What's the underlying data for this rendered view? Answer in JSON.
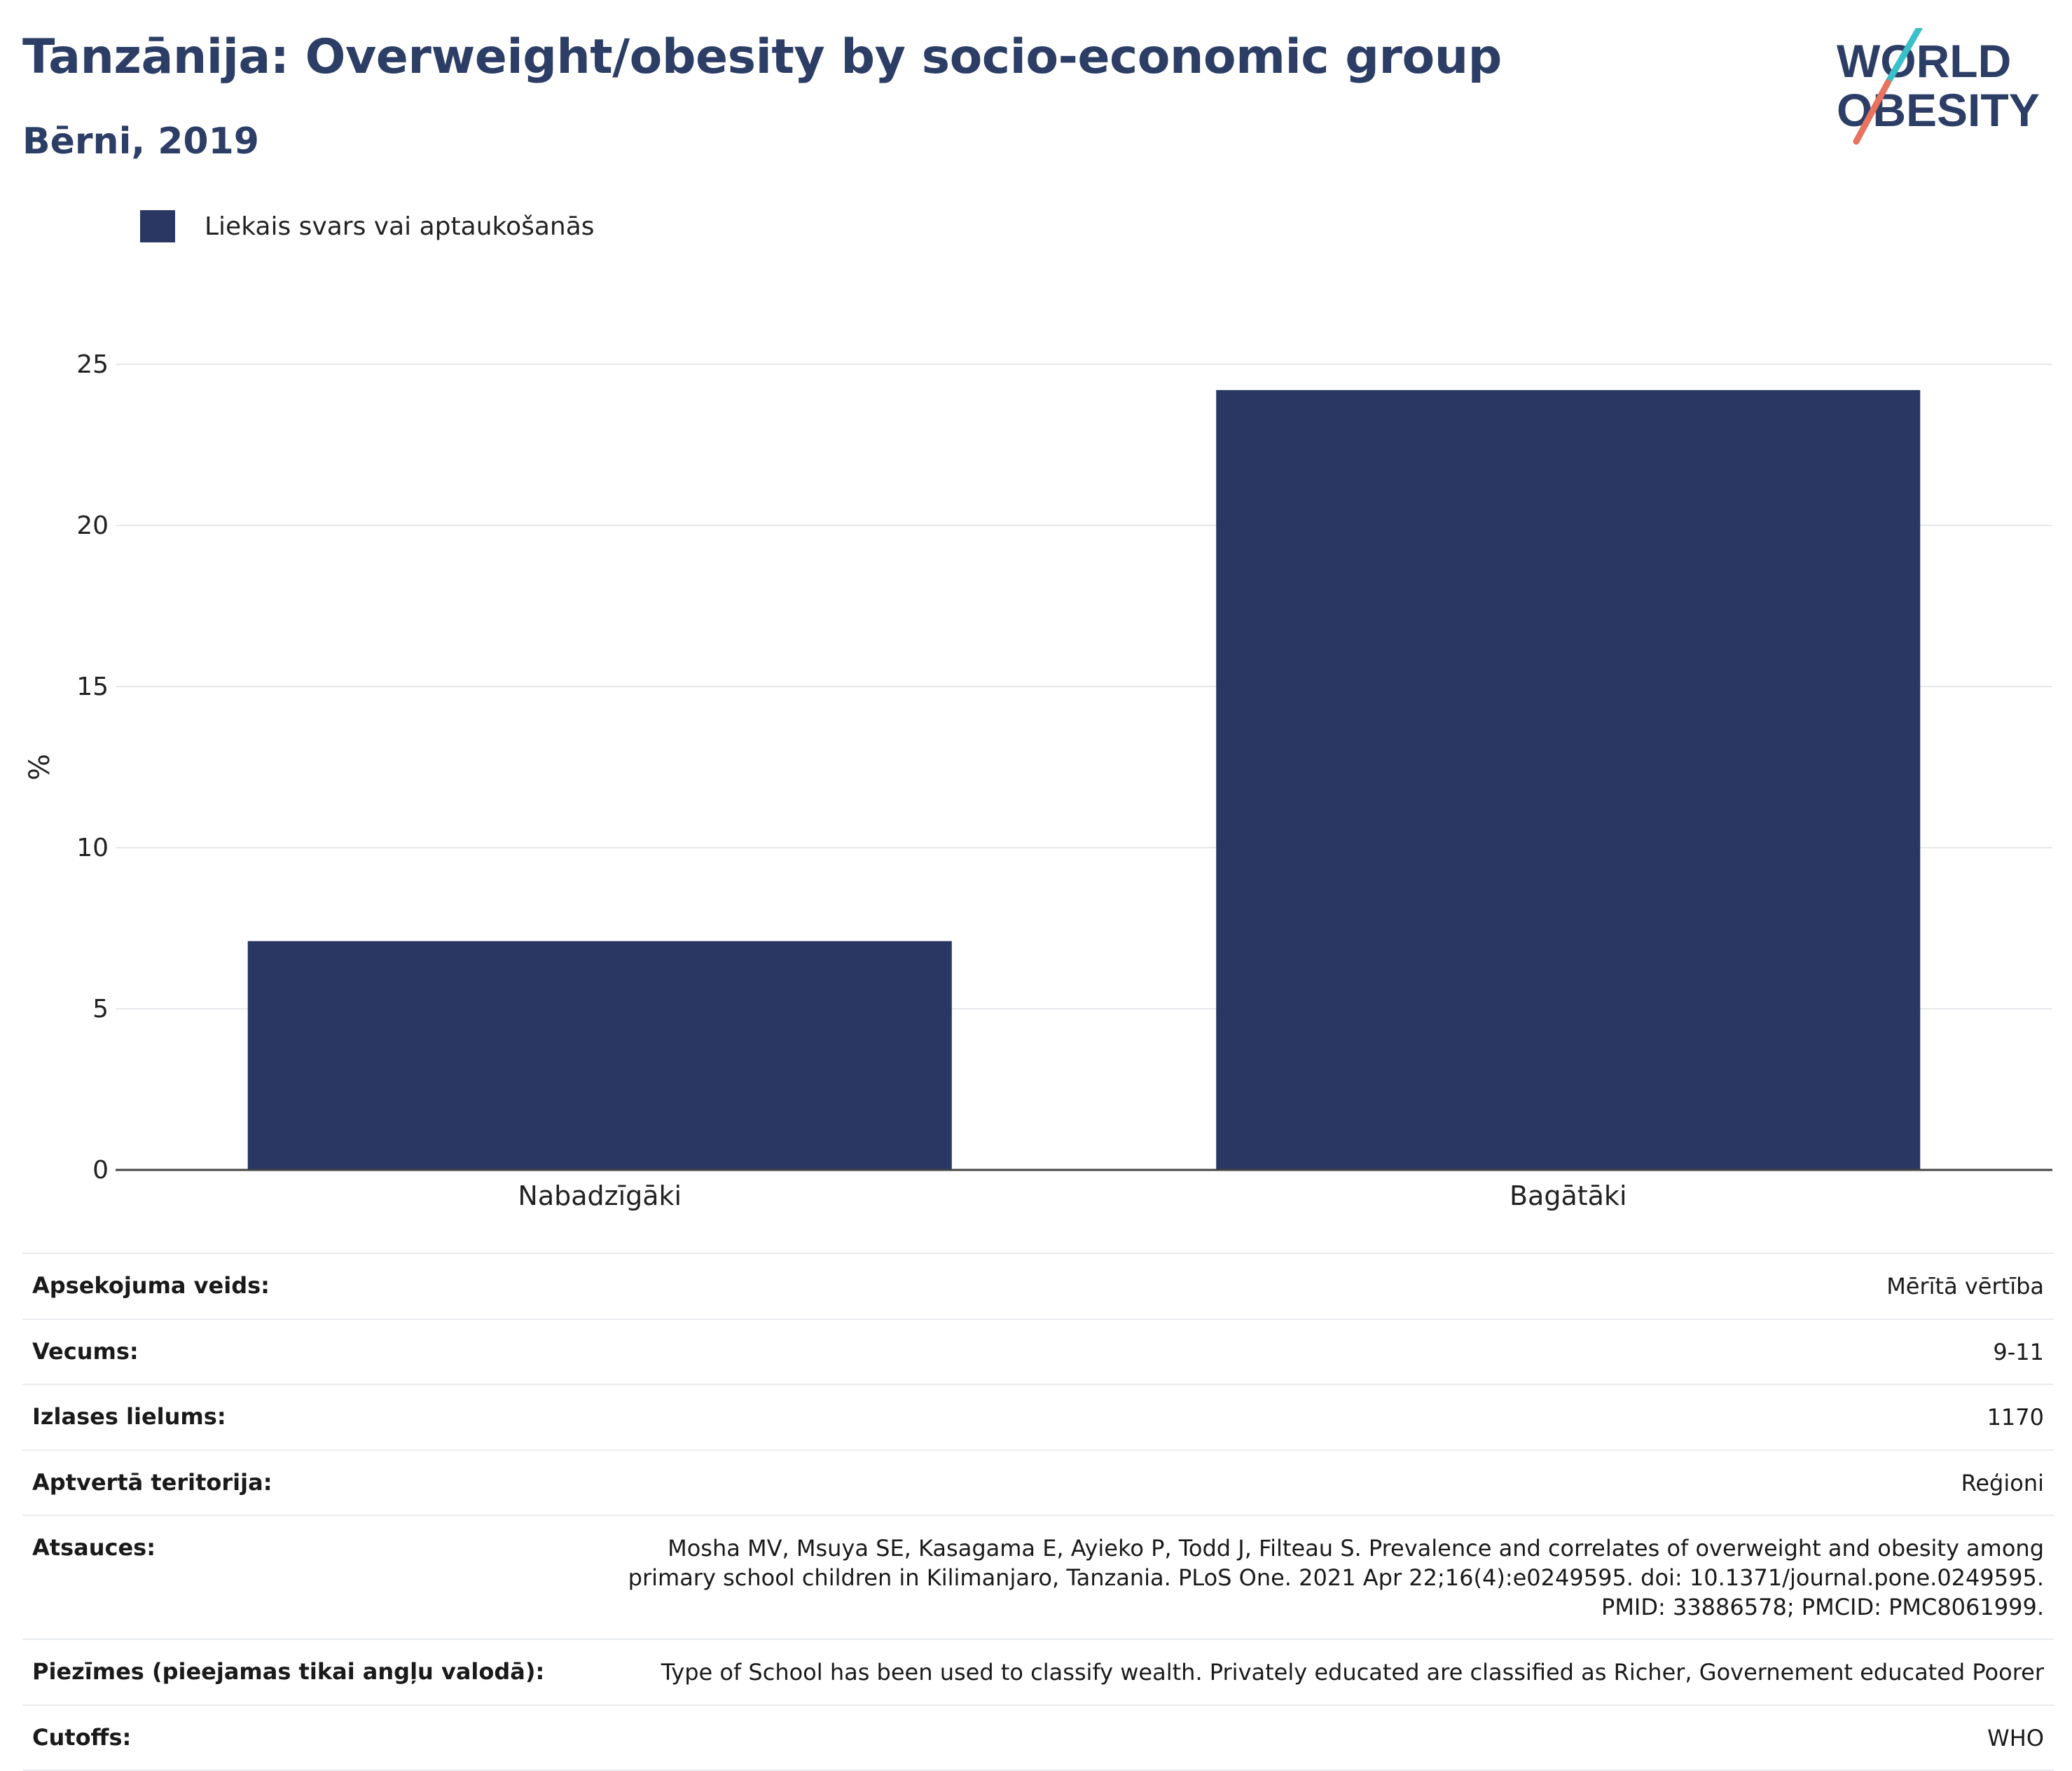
{
  "header": {
    "title": "Tanzānija: Overweight/obesity by socio-economic group",
    "subtitle": "Bērni, 2019"
  },
  "logo": {
    "line1": "WORLD",
    "line2": "OBESITY",
    "colors": {
      "text": "#2c3e66",
      "slash_top": "#3bbfc9",
      "slash_bottom": "#e8735f"
    }
  },
  "legend": {
    "label": "Liekais svars vai aptaukošanās",
    "color": "#2a3763"
  },
  "chart_data": {
    "type": "bar",
    "categories": [
      "Nabadzīgāki",
      "Bagātāki"
    ],
    "series": [
      {
        "name": "Liekais svars vai aptaukošanās",
        "values": [
          7.1,
          24.2
        ],
        "color": "#2a3763"
      }
    ],
    "ylabel": "%",
    "ylim": [
      0,
      25
    ],
    "yticks": [
      0,
      5,
      10,
      15,
      20,
      25
    ],
    "grid": true,
    "legend_position": "top-left"
  },
  "meta": [
    {
      "label": "Apsekojuma veids:",
      "value": "Mērītā vērtība"
    },
    {
      "label": "Vecums:",
      "value": "9-11"
    },
    {
      "label": "Izlases lielums:",
      "value": "1170"
    },
    {
      "label": "Aptvertā teritorija:",
      "value": "Reģioni"
    },
    {
      "label": "Atsauces:",
      "value": "Mosha MV, Msuya SE, Kasagama E, Ayieko P, Todd J, Filteau S. Prevalence and correlates of overweight and obesity among primary school children in Kilimanjaro, Tanzania. PLoS One. 2021 Apr 22;16(4):e0249595. doi: 10.1371/journal.pone.0249595. PMID: 33886578; PMCID: PMC8061999."
    },
    {
      "label": "Piezīmes (pieejamas tikai angļu valodā):",
      "value": "Type of School has been used to classify wealth. Privately educated are classified as Richer, Governement educated Poorer"
    },
    {
      "label": "Cutoffs:",
      "value": "WHO"
    }
  ]
}
